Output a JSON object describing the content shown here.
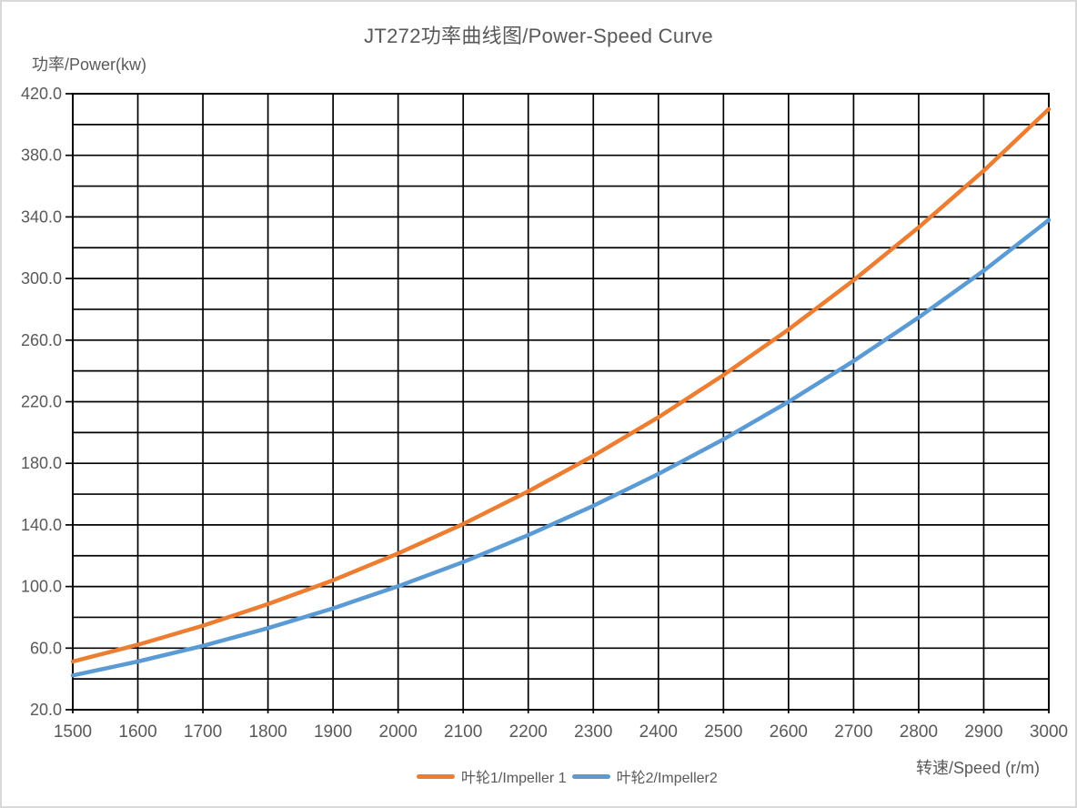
{
  "figure": {
    "background": "#ffffff",
    "frame_border_color": "#d9d9d9"
  },
  "chart_data": {
    "type": "line",
    "title": "JT272功率曲线图/Power-Speed Curve",
    "xlabel": "转速/Speed (r/m)",
    "ylabel": "功率/Power(kw)",
    "xlim": [
      1500,
      3000
    ],
    "ylim": [
      20,
      420
    ],
    "x_tick_step": 100,
    "y_label_step": 40,
    "y_minor_step": 20,
    "y_tick_decimals": 1,
    "grid": true,
    "grid_color": "#000000",
    "axis_text_color": "#595959",
    "legend_position": "bottom-center",
    "x": [
      1500,
      1600,
      1700,
      1800,
      1900,
      2000,
      2100,
      2200,
      2300,
      2400,
      2500,
      2600,
      2700,
      2800,
      2900,
      3000
    ],
    "series": [
      {
        "name": "叶轮1/Impeller 1",
        "color": "#ED7D31",
        "values": [
          51.3,
          62.2,
          74.6,
          88.6,
          104.1,
          121.5,
          140.6,
          161.8,
          184.9,
          209.9,
          237.3,
          266.9,
          298.9,
          333.2,
          370.0,
          410.0
        ]
      },
      {
        "name": "叶轮2/Impeller2",
        "color": "#5B9BD5",
        "values": [
          42.3,
          51.3,
          61.5,
          73.0,
          85.8,
          100.2,
          115.9,
          133.4,
          152.4,
          173.1,
          195.6,
          220.0,
          246.4,
          274.7,
          305.1,
          338.0
        ]
      }
    ]
  }
}
